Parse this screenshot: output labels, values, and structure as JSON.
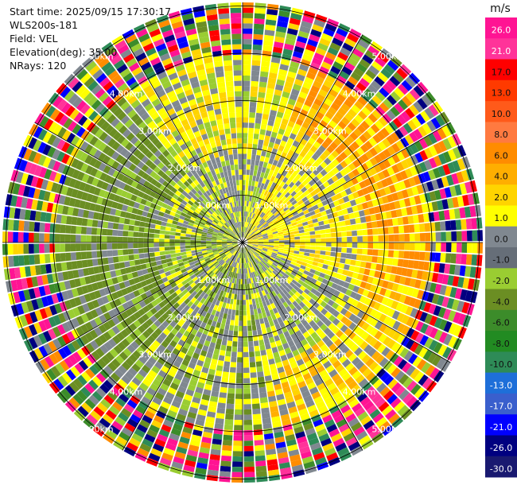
{
  "header": {
    "start_time": "Start time: 2025/09/15 17:30:17",
    "station": "WLS200s-181",
    "field": "Field: VEL",
    "elevation": "Elevation(deg): 35.00",
    "nrays": "NRays: 120"
  },
  "chart_data": {
    "type": "ppi-polar-heatmap",
    "field": "VEL",
    "nrays": 120,
    "range_rings_km": [
      1.0,
      2.0,
      3.0,
      4.0,
      5.0
    ],
    "ring_labels": [
      "1.00km",
      "2.00km",
      "3.00km",
      "4.00km",
      "5.00km"
    ],
    "colorbar": {
      "unit": "m/s",
      "tick_labels": [
        "26.0",
        "21.0",
        "17.0",
        "13.0",
        "10.0",
        "8.0",
        "6.0",
        "4.0",
        "2.0",
        "1.0",
        "0.0",
        "-1.0",
        "-2.0",
        "-4.0",
        "-6.0",
        "-8.0",
        "-10.0",
        "-13.0",
        "-17.0",
        "-21.0",
        "-26.0",
        "-30.0"
      ],
      "colors": [
        "#ff1493",
        "#ff3399",
        "#ff0000",
        "#ff3a00",
        "#ff5a1a",
        "#ff7a40",
        "#ff8c00",
        "#ffae00",
        "#ffd400",
        "#ffff00",
        "#808890",
        "#666e78",
        "#9acd32",
        "#6b8e23",
        "#3c8c2a",
        "#228b22",
        "#2e8b57",
        "#1e6fd9",
        "#3a5fcd",
        "#0000ff",
        "#000080",
        "#191970"
      ]
    }
  }
}
